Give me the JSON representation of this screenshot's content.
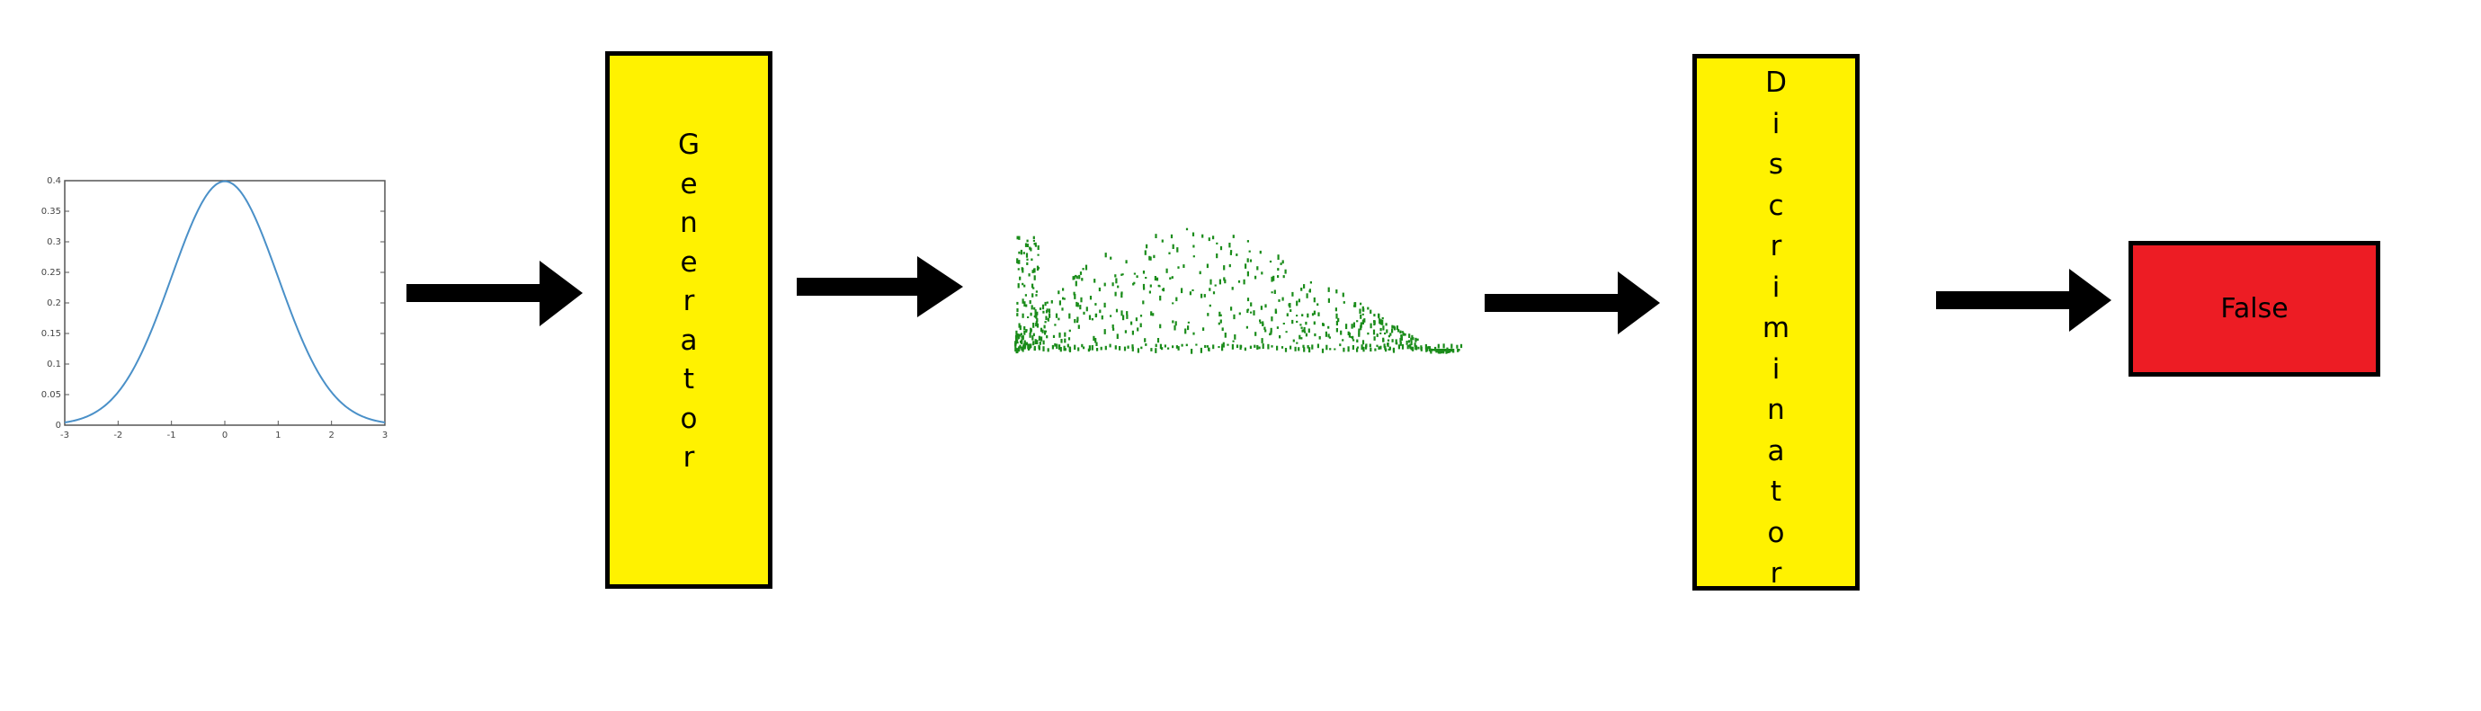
{
  "diagram": {
    "input_plot": {
      "type": "line",
      "x_ticks": [
        "-3",
        "-2",
        "-1",
        "0",
        "1",
        "2",
        "3"
      ],
      "y_ticks": [
        "0",
        "0.05",
        "0.1",
        "0.15",
        "0.2",
        "0.25",
        "0.3",
        "0.35",
        "0.4"
      ],
      "xlim": [
        -3,
        3
      ],
      "ylim": [
        0,
        0.4
      ],
      "line_color": "#4a90c8"
    },
    "generator": {
      "letters": [
        "G",
        "e",
        "n",
        "e",
        "r",
        "a",
        "t",
        "o",
        "r"
      ]
    },
    "generated_sample": {
      "point_color": "#1a8c1a"
    },
    "discriminator": {
      "letters": [
        "D",
        "i",
        "s",
        "c",
        "r",
        "i",
        "m",
        "i",
        "n",
        "a",
        "t",
        "o",
        "r"
      ]
    },
    "output": {
      "label": "False",
      "color": "#ed1c24"
    },
    "box_color": "#fff200"
  }
}
